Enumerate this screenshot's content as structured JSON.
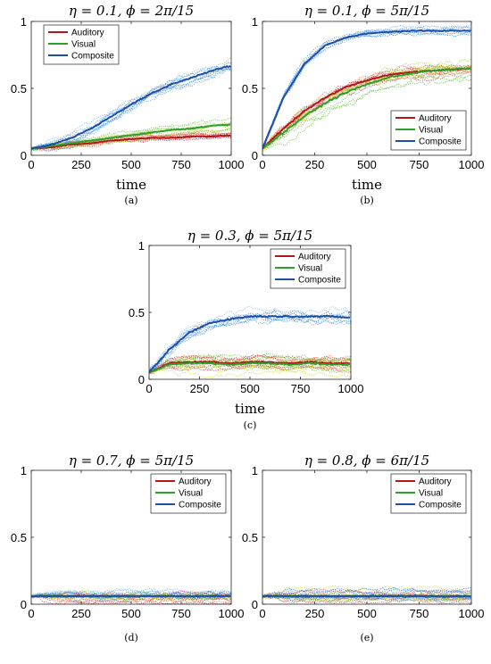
{
  "panels": [
    {
      "title": "η = 0.1, ϕ = 2π/15",
      "xlabel": "time",
      "caption": "(a)",
      "legend_position": "top-left",
      "chart_data": {
        "type": "line",
        "xlim": [
          0,
          1000
        ],
        "ylim": [
          0,
          1
        ],
        "xticks": [
          "0",
          "250",
          "500",
          "750",
          "1000"
        ],
        "yticks": [
          "0",
          "0.5",
          "1"
        ],
        "x": [
          0,
          100,
          200,
          300,
          400,
          500,
          600,
          700,
          800,
          900,
          1000
        ],
        "series": [
          {
            "name": "Auditory",
            "values": [
              0.05,
              0.06,
              0.08,
              0.09,
              0.11,
              0.12,
              0.13,
              0.13,
              0.14,
              0.14,
              0.15
            ],
            "spread": 0.03
          },
          {
            "name": "Visual",
            "values": [
              0.05,
              0.07,
              0.09,
              0.11,
              0.13,
              0.15,
              0.17,
              0.19,
              0.2,
              0.22,
              0.23
            ],
            "spread": 0.04
          },
          {
            "name": "Composite",
            "values": [
              0.05,
              0.08,
              0.13,
              0.2,
              0.29,
              0.38,
              0.46,
              0.53,
              0.58,
              0.63,
              0.67
            ],
            "spread": 0.06
          }
        ]
      }
    },
    {
      "title": "η = 0.1, ϕ = 5π/15",
      "xlabel": "time",
      "caption": "(b)",
      "legend_position": "bottom-right",
      "chart_data": {
        "type": "line",
        "xlim": [
          0,
          1000
        ],
        "ylim": [
          0,
          1
        ],
        "xticks": [
          "0",
          "250",
          "500",
          "750",
          "1000"
        ],
        "yticks": [
          "0",
          "0.5",
          "1"
        ],
        "x": [
          0,
          100,
          200,
          300,
          400,
          500,
          600,
          700,
          800,
          900,
          1000
        ],
        "series": [
          {
            "name": "Auditory",
            "values": [
              0.05,
              0.2,
              0.33,
              0.43,
              0.51,
              0.56,
              0.6,
              0.62,
              0.63,
              0.64,
              0.65
            ],
            "spread": 0.06
          },
          {
            "name": "Visual",
            "values": [
              0.05,
              0.17,
              0.29,
              0.39,
              0.47,
              0.53,
              0.58,
              0.61,
              0.63,
              0.64,
              0.65
            ],
            "spread": 0.08
          },
          {
            "name": "Composite",
            "values": [
              0.05,
              0.43,
              0.68,
              0.82,
              0.88,
              0.91,
              0.92,
              0.93,
              0.93,
              0.93,
              0.93
            ],
            "spread": 0.04
          }
        ]
      }
    },
    {
      "title": "η = 0.3, ϕ = 5π/15",
      "xlabel": "time",
      "caption": "(c)",
      "legend_position": "top-right",
      "chart_data": {
        "type": "line",
        "xlim": [
          0,
          1000
        ],
        "ylim": [
          0,
          1
        ],
        "xticks": [
          "0",
          "250",
          "500",
          "750",
          "1000"
        ],
        "yticks": [
          "0",
          "0.5",
          "1"
        ],
        "x": [
          0,
          100,
          200,
          300,
          400,
          500,
          600,
          700,
          800,
          900,
          1000
        ],
        "series": [
          {
            "name": "Auditory",
            "values": [
              0.05,
              0.12,
              0.13,
              0.13,
              0.12,
              0.13,
              0.13,
              0.12,
              0.13,
              0.12,
              0.12
            ],
            "spread": 0.05
          },
          {
            "name": "Visual",
            "values": [
              0.05,
              0.11,
              0.12,
              0.12,
              0.11,
              0.12,
              0.12,
              0.11,
              0.12,
              0.11,
              0.11
            ],
            "spread": 0.06
          },
          {
            "name": "Composite",
            "values": [
              0.05,
              0.22,
              0.35,
              0.42,
              0.45,
              0.47,
              0.47,
              0.47,
              0.47,
              0.47,
              0.46
            ],
            "spread": 0.07
          }
        ]
      }
    },
    {
      "title": "η = 0.7, ϕ = 5π/15",
      "xlabel": "",
      "caption": "(d)",
      "legend_position": "top-right",
      "chart_data": {
        "type": "line",
        "xlim": [
          0,
          1000
        ],
        "ylim": [
          0,
          1
        ],
        "xticks": [
          "0",
          "250",
          "500",
          "750",
          "1000"
        ],
        "yticks": [
          "0",
          "0.5",
          "1"
        ],
        "x": [
          0,
          100,
          200,
          300,
          400,
          500,
          600,
          700,
          800,
          900,
          1000
        ],
        "series": [
          {
            "name": "Auditory",
            "values": [
              0.06,
              0.06,
              0.06,
              0.06,
              0.06,
              0.06,
              0.06,
              0.06,
              0.06,
              0.06,
              0.06
            ],
            "spread": 0.05
          },
          {
            "name": "Visual",
            "values": [
              0.06,
              0.06,
              0.06,
              0.06,
              0.06,
              0.06,
              0.06,
              0.06,
              0.06,
              0.06,
              0.06
            ],
            "spread": 0.05
          },
          {
            "name": "Composite",
            "values": [
              0.06,
              0.06,
              0.06,
              0.06,
              0.06,
              0.06,
              0.06,
              0.06,
              0.06,
              0.06,
              0.06
            ],
            "spread": 0.05
          }
        ]
      }
    },
    {
      "title": "η = 0.8, ϕ = 6π/15",
      "xlabel": "",
      "caption": "(e)",
      "legend_position": "top-right",
      "chart_data": {
        "type": "line",
        "xlim": [
          0,
          1000
        ],
        "ylim": [
          0,
          1
        ],
        "xticks": [
          "0",
          "250",
          "500",
          "750",
          "1000"
        ],
        "yticks": [
          "0",
          "0.5",
          "1"
        ],
        "x": [
          0,
          100,
          200,
          300,
          400,
          500,
          600,
          700,
          800,
          900,
          1000
        ],
        "series": [
          {
            "name": "Auditory",
            "values": [
              0.06,
              0.06,
              0.06,
              0.06,
              0.06,
              0.06,
              0.06,
              0.06,
              0.06,
              0.06,
              0.06
            ],
            "spread": 0.05
          },
          {
            "name": "Visual",
            "values": [
              0.06,
              0.06,
              0.06,
              0.06,
              0.06,
              0.06,
              0.06,
              0.06,
              0.06,
              0.06,
              0.06
            ],
            "spread": 0.05
          },
          {
            "name": "Composite",
            "values": [
              0.06,
              0.06,
              0.06,
              0.06,
              0.06,
              0.06,
              0.06,
              0.06,
              0.06,
              0.06,
              0.06
            ],
            "spread": 0.05
          }
        ]
      }
    }
  ],
  "colors": {
    "Auditory": "#b2181b",
    "Visual": "#2ca02c",
    "Composite": "#1f4ea8",
    "Auditory_trials": [
      "#e8333a",
      "#f06a2a",
      "#d62f6b"
    ],
    "Visual_trials": [
      "#9ad62b",
      "#d6d62a",
      "#5fc23a"
    ],
    "Composite_trials": [
      "#4a9be8",
      "#2f7fe0",
      "#7ab8f0"
    ]
  }
}
